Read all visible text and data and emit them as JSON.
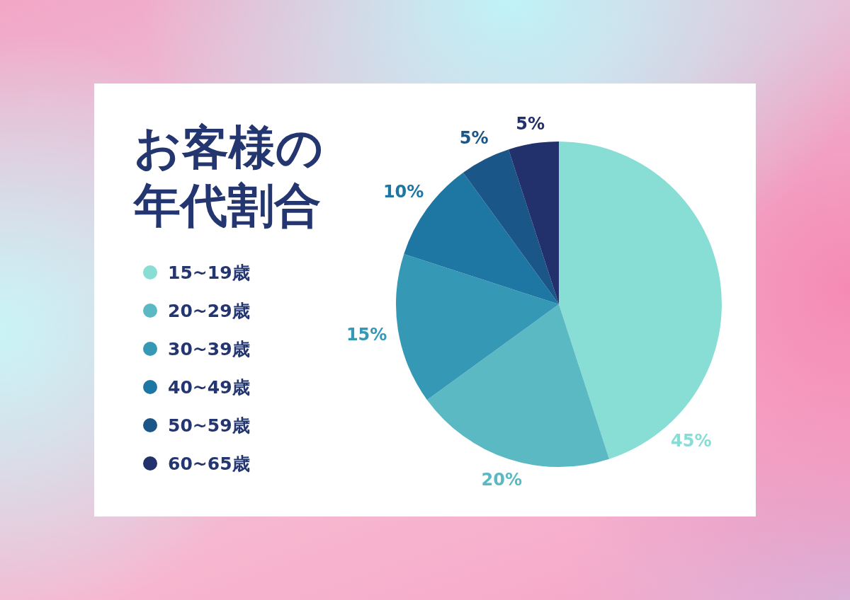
{
  "chart_data": {
    "type": "pie",
    "title": "お客様の年代割合",
    "categories": [
      "15~19歳",
      "20~29歳",
      "30~39歳",
      "40~49歳",
      "50~59歳",
      "60~65歳"
    ],
    "values": [
      45,
      20,
      15,
      10,
      5,
      5
    ],
    "colors": [
      "#88ddd5",
      "#5bb9c4",
      "#3598b5",
      "#1e76a3",
      "#1b5689",
      "#22306b"
    ],
    "value_labels": [
      "45%",
      "20%",
      "15%",
      "10%",
      "5%",
      "5%"
    ],
    "legend": "left"
  }
}
